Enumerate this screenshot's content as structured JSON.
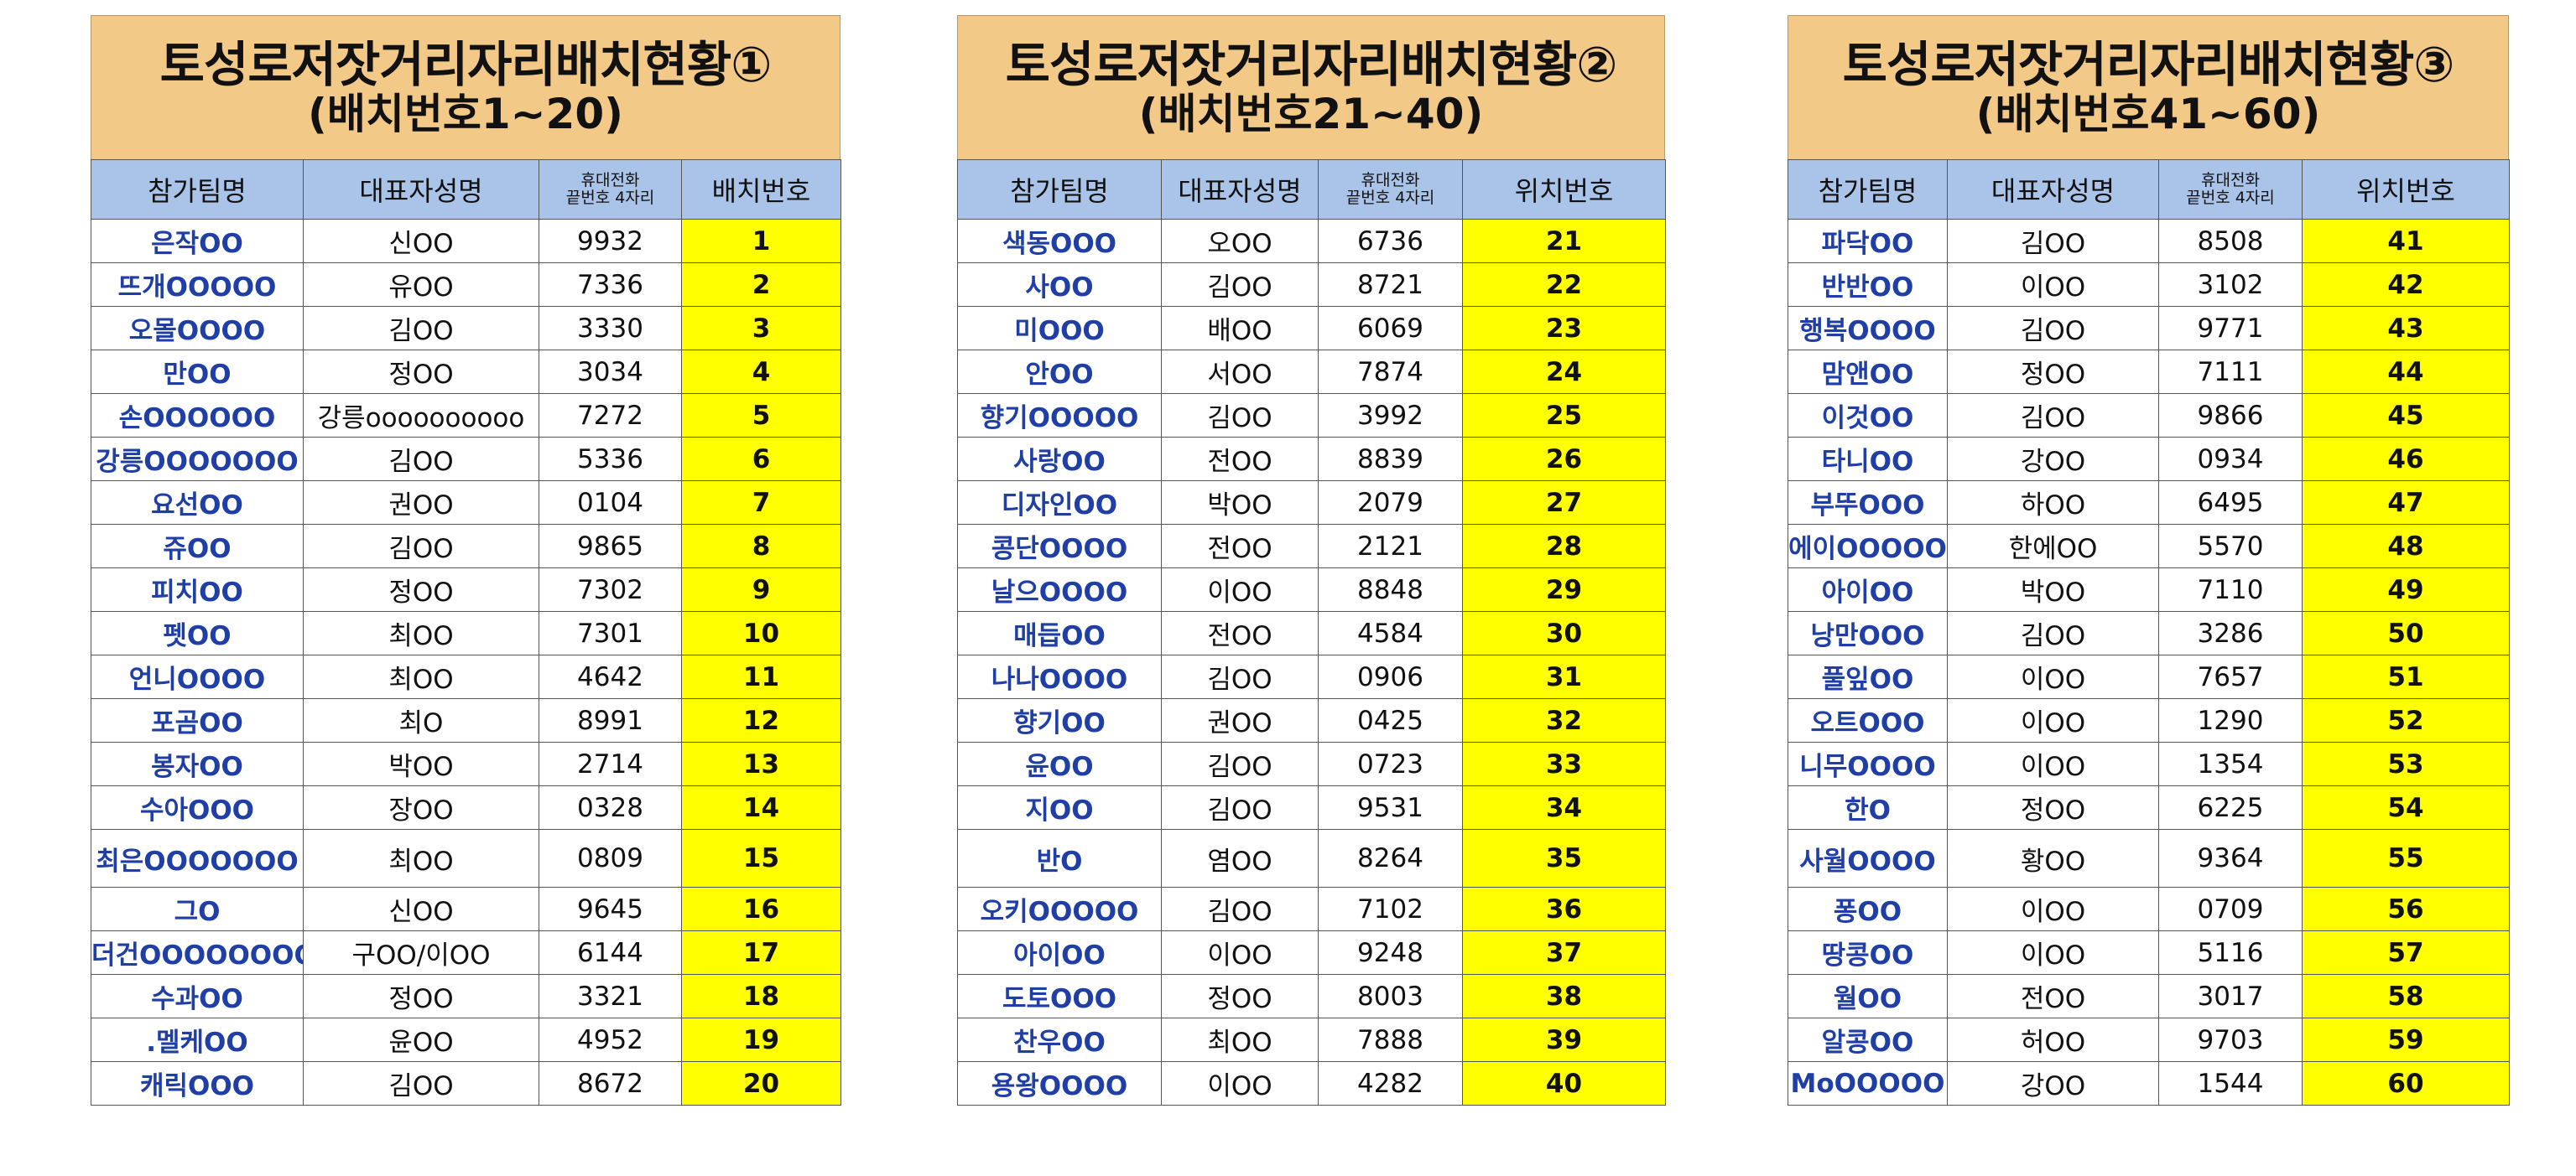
{
  "panels": [
    {
      "title_line1": "토성로저잣거리자리배치현황①",
      "title_line2": "(배치번호1~20)",
      "headers": [
        "참가팀명",
        "대표자성명",
        "휴대전화\n끝번호 4자리",
        "배치번호"
      ],
      "rows": [
        [
          "은작OO",
          "신OO",
          "9932",
          "1"
        ],
        [
          "뜨개OOOOO",
          "유OO",
          "7336",
          "2"
        ],
        [
          "오몰OOOO",
          "김OO",
          "3330",
          "3"
        ],
        [
          "만OO",
          "정OO",
          "3034",
          "4"
        ],
        [
          "손OOOOOO",
          "강릉oooooooooo",
          "7272",
          "5"
        ],
        [
          "강릉OOOOOOO",
          "김OO",
          "5336",
          "6"
        ],
        [
          "요선OO",
          "권OO",
          "0104",
          "7"
        ],
        [
          "쥬OO",
          "김OO",
          "9865",
          "8"
        ],
        [
          "피치OO",
          "정OO",
          "7302",
          "9"
        ],
        [
          "펫OO",
          "최OO",
          "7301",
          "10"
        ],
        [
          "언니OOOO",
          "최OO",
          "4642",
          "11"
        ],
        [
          "포곰OO",
          "최O",
          "8991",
          "12"
        ],
        [
          "봉자OO",
          "박OO",
          "2714",
          "13"
        ],
        [
          "수아OOO",
          "장OO",
          "0328",
          "14"
        ],
        [
          "최은OOOOOOO",
          "최OO",
          "0809",
          "15"
        ],
        [
          "그O",
          "신OO",
          "9645",
          "16"
        ],
        [
          "더건OOOOOOOO",
          "구OO/이OO",
          "6144",
          "17"
        ],
        [
          "수과OO",
          "정OO",
          "3321",
          "18"
        ],
        [
          ".멜케OO",
          "윤OO",
          "4952",
          "19"
        ],
        [
          "캐릭OOO",
          "김OO",
          "8672",
          "20"
        ]
      ]
    },
    {
      "title_line1": "토성로저잣거리자리배치현황②",
      "title_line2": "(배치번호21~40)",
      "headers": [
        "참가팀명",
        "대표자성명",
        "휴대전화\n끝번호 4자리",
        "위치번호"
      ],
      "rows": [
        [
          "색동OOO",
          "오OO",
          "6736",
          "21"
        ],
        [
          "사OO",
          "김OO",
          "8721",
          "22"
        ],
        [
          "미OOO",
          "배OO",
          "6069",
          "23"
        ],
        [
          "안OO",
          "서OO",
          "7874",
          "24"
        ],
        [
          "향기OOOOO",
          "김OO",
          "3992",
          "25"
        ],
        [
          "사랑OO",
          "전OO",
          "8839",
          "26"
        ],
        [
          "디자인OO",
          "박OO",
          "2079",
          "27"
        ],
        [
          "콩단OOOO",
          "전OO",
          "2121",
          "28"
        ],
        [
          "날으OOOO",
          "이OO",
          "8848",
          "29"
        ],
        [
          "매듭OO",
          "전OO",
          "4584",
          "30"
        ],
        [
          "나나OOOO",
          "김OO",
          "0906",
          "31"
        ],
        [
          "향기OO",
          "권OO",
          "0425",
          "32"
        ],
        [
          "윤OO",
          "김OO",
          "0723",
          "33"
        ],
        [
          "지OO",
          "김OO",
          "9531",
          "34"
        ],
        [
          "반O",
          "염OO",
          "8264",
          "35"
        ],
        [
          "오키OOOOO",
          "김OO",
          "7102",
          "36"
        ],
        [
          "아이OO",
          "이OO",
          "9248",
          "37"
        ],
        [
          "도토OOO",
          "정OO",
          "8003",
          "38"
        ],
        [
          "찬우OO",
          "최OO",
          "7888",
          "39"
        ],
        [
          "용왕OOOO",
          "이OO",
          "4282",
          "40"
        ]
      ]
    },
    {
      "title_line1": "토성로저잣거리자리배치현황③",
      "title_line2": "(배치번호41~60)",
      "headers": [
        "참가팀명",
        "대표자성명",
        "휴대전화\n끝번호 4자리",
        "위치번호"
      ],
      "rows": [
        [
          "파닥OO",
          "김OO",
          "8508",
          "41"
        ],
        [
          "반반OO",
          "이OO",
          "3102",
          "42"
        ],
        [
          "행복OOOO",
          "김OO",
          "9771",
          "43"
        ],
        [
          "맘앤OO",
          "정OO",
          "7111",
          "44"
        ],
        [
          "이것OO",
          "김OO",
          "9866",
          "45"
        ],
        [
          "타니OO",
          "강OO",
          "0934",
          "46"
        ],
        [
          "부뚜OOO",
          "하OO",
          "6495",
          "47"
        ],
        [
          "에이OOOOO",
          "한에OO",
          "5570",
          "48"
        ],
        [
          "아이OO",
          "박OO",
          "7110",
          "49"
        ],
        [
          "낭만OOO",
          "김OO",
          "3286",
          "50"
        ],
        [
          "풀잎OO",
          "이OO",
          "7657",
          "51"
        ],
        [
          "오트OOO",
          "이OO",
          "1290",
          "52"
        ],
        [
          "니무OOOO",
          "이OO",
          "1354",
          "53"
        ],
        [
          "한O",
          "정OO",
          "6225",
          "54"
        ],
        [
          "사월OOOO",
          "황OO",
          "9364",
          "55"
        ],
        [
          "퐁OO",
          "이OO",
          "0709",
          "56"
        ],
        [
          "땅콩OO",
          "이OO",
          "5116",
          "57"
        ],
        [
          "월OO",
          "전OO",
          "3017",
          "58"
        ],
        [
          "알콩OO",
          "허OO",
          "9703",
          "59"
        ],
        [
          "MoOOOOO",
          "강OO",
          "1544",
          "60"
        ]
      ]
    }
  ]
}
